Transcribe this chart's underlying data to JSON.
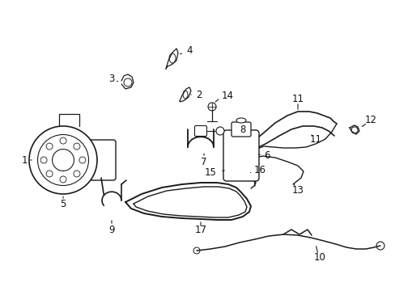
{
  "background_color": "#ffffff",
  "fig_width": 4.89,
  "fig_height": 3.6,
  "dpi": 100,
  "line_color": "#1a1a1a",
  "label_fontsize": 8.5,
  "label_color": "#111111"
}
